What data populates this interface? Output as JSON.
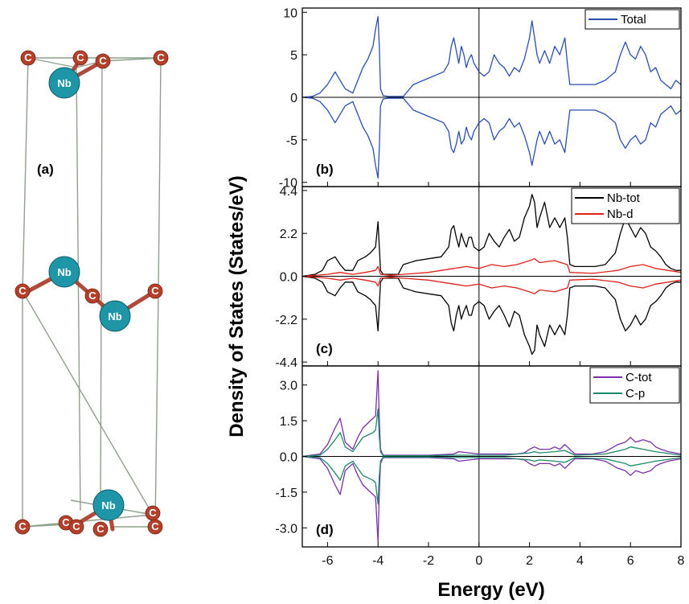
{
  "structure": {
    "panel_label": "(a)",
    "atom_label_nb": "Nb",
    "atom_label_c": "C",
    "colors": {
      "nb": "#1e96a8",
      "c": "#b5402a",
      "bond": "#8fa08c"
    }
  },
  "axes": {
    "ylabel": "Density of States (States/eV)",
    "xlabel": "Energy (eV)",
    "xticks": [
      "-6",
      "-4",
      "-2",
      "0",
      "2",
      "4",
      "6",
      "8"
    ]
  },
  "chart_data": [
    {
      "type": "line",
      "panel_label": "(b)",
      "yticks": [
        "10",
        "5",
        "0",
        "-5",
        "-10"
      ],
      "xlim": [
        -7,
        8
      ],
      "ylim": [
        -10.5,
        10.5
      ],
      "series": [
        {
          "name": "Total",
          "color": "#2a4fb0",
          "x": [
            -7,
            -6.6,
            -6.3,
            -6.0,
            -5.7,
            -5.5,
            -5.3,
            -5.0,
            -4.8,
            -4.6,
            -4.4,
            -4.2,
            -4.1,
            -4.0,
            -3.95,
            -3.9,
            -3.8,
            -3.6,
            -3.4,
            -3.2,
            -3.0,
            -2.6,
            -2.2,
            -1.8,
            -1.4,
            -1.2,
            -1.1,
            -1.0,
            -0.9,
            -0.8,
            -0.7,
            -0.6,
            -0.5,
            -0.4,
            -0.3,
            -0.2,
            -0.1,
            0.0,
            0.2,
            0.4,
            0.6,
            0.8,
            1.0,
            1.2,
            1.4,
            1.6,
            1.8,
            2.0,
            2.1,
            2.2,
            2.3,
            2.4,
            2.6,
            2.8,
            3.0,
            3.2,
            3.4,
            3.5,
            3.6,
            3.8,
            4.2,
            4.6,
            5.0,
            5.4,
            5.6,
            5.8,
            6.0,
            6.2,
            6.4,
            6.6,
            6.8,
            7.0,
            7.2,
            7.4,
            7.6,
            7.8,
            8.0
          ],
          "up": [
            0,
            0.1,
            0.5,
            1.5,
            3.0,
            2.0,
            1.0,
            0.5,
            2.0,
            3.5,
            4.5,
            6.0,
            8.0,
            9.5,
            6.0,
            1.0,
            0.2,
            0.1,
            0.1,
            0.1,
            0.1,
            1.5,
            2.0,
            2.5,
            3.0,
            4.0,
            6.0,
            7.0,
            5.5,
            4.0,
            6.0,
            5.0,
            3.5,
            4.5,
            5.0,
            4.0,
            3.5,
            3.0,
            2.5,
            3.0,
            5.0,
            4.0,
            3.5,
            2.5,
            3.5,
            3.0,
            4.5,
            7.0,
            9.0,
            7.0,
            5.0,
            4.0,
            5.5,
            4.0,
            6.0,
            5.0,
            7.0,
            4.0,
            1.5,
            1.5,
            1.5,
            1.5,
            2.0,
            3.0,
            5.0,
            6.5,
            5.0,
            4.5,
            6.0,
            5.0,
            3.0,
            3.5,
            2.0,
            1.5,
            1.0,
            2.0,
            1.5
          ],
          "down": [
            0,
            -0.1,
            -0.5,
            -1.5,
            -3.0,
            -2.0,
            -1.0,
            -0.5,
            -2.0,
            -3.5,
            -4.5,
            -6.0,
            -8.0,
            -9.5,
            -6.0,
            -1.0,
            -0.2,
            -0.1,
            -0.1,
            -0.1,
            -0.1,
            -1.5,
            -2.0,
            -2.5,
            -3.0,
            -4.0,
            -6.0,
            -6.5,
            -5.5,
            -4.0,
            -5.5,
            -5.0,
            -3.5,
            -4.5,
            -5.0,
            -4.0,
            -3.5,
            -3.0,
            -2.5,
            -3.0,
            -5.0,
            -4.0,
            -3.5,
            -2.5,
            -3.5,
            -3.0,
            -4.5,
            -6.5,
            -8.0,
            -6.5,
            -5.0,
            -4.0,
            -5.5,
            -4.0,
            -5.5,
            -5.0,
            -6.5,
            -4.0,
            -1.5,
            -1.5,
            -1.5,
            -1.5,
            -2.0,
            -3.0,
            -5.0,
            -6.0,
            -5.0,
            -4.5,
            -5.5,
            -5.0,
            -3.0,
            -3.5,
            -2.0,
            -1.5,
            -1.0,
            -2.0,
            -1.5
          ]
        }
      ]
    },
    {
      "type": "line",
      "panel_label": "(c)",
      "yticks": [
        "4.4",
        "2.2",
        "0.0",
        "-2.2",
        "-4.4"
      ],
      "xlim": [
        -7,
        8
      ],
      "ylim": [
        -4.6,
        4.6
      ],
      "series": [
        {
          "name": "Nb-tot",
          "color": "#000000",
          "x": [
            -7,
            -6.5,
            -6.2,
            -6.0,
            -5.7,
            -5.5,
            -5.3,
            -5.0,
            -4.8,
            -4.5,
            -4.3,
            -4.1,
            -4.0,
            -3.95,
            -3.9,
            -3.8,
            -3.6,
            -3.4,
            -3.2,
            -3.0,
            -2.5,
            -2.0,
            -1.5,
            -1.2,
            -1.1,
            -1.0,
            -0.9,
            -0.8,
            -0.7,
            -0.6,
            -0.5,
            -0.4,
            -0.3,
            -0.2,
            0.0,
            0.2,
            0.4,
            0.6,
            0.8,
            1.0,
            1.2,
            1.4,
            1.6,
            1.8,
            2.0,
            2.1,
            2.2,
            2.3,
            2.4,
            2.6,
            2.8,
            3.0,
            3.2,
            3.4,
            3.5,
            3.6,
            3.8,
            4.2,
            4.6,
            5.0,
            5.4,
            5.6,
            5.8,
            6.0,
            6.2,
            6.4,
            6.6,
            6.8,
            7.0,
            7.2,
            7.4,
            7.6,
            7.8,
            8.0
          ],
          "up": [
            0,
            0.1,
            0.3,
            0.8,
            1.0,
            0.6,
            0.3,
            0.3,
            0.8,
            1.0,
            1.2,
            1.5,
            2.8,
            1.5,
            0.3,
            0.1,
            0.1,
            0.1,
            0.1,
            0.6,
            0.8,
            0.9,
            1.0,
            1.5,
            2.4,
            2.6,
            2.0,
            1.5,
            2.2,
            1.8,
            1.5,
            2.0,
            2.0,
            1.5,
            1.3,
            1.5,
            2.2,
            1.8,
            1.5,
            2.0,
            2.4,
            1.8,
            2.0,
            3.0,
            3.6,
            4.2,
            3.8,
            2.5,
            3.0,
            3.8,
            2.5,
            3.0,
            2.5,
            3.0,
            2.0,
            0.6,
            0.5,
            0.5,
            0.5,
            0.6,
            1.2,
            2.2,
            3.0,
            2.5,
            2.0,
            2.5,
            2.2,
            1.5,
            1.3,
            1.0,
            0.6,
            0.4,
            0.3,
            0.3
          ],
          "down": [
            0,
            -0.1,
            -0.3,
            -0.8,
            -1.0,
            -0.6,
            -0.3,
            -0.3,
            -0.8,
            -1.0,
            -1.2,
            -1.5,
            -2.8,
            -1.5,
            -0.3,
            -0.1,
            -0.1,
            -0.1,
            -0.1,
            -0.6,
            -0.8,
            -0.9,
            -1.0,
            -1.5,
            -2.4,
            -2.8,
            -2.0,
            -1.5,
            -2.2,
            -1.8,
            -1.5,
            -2.0,
            -2.0,
            -1.5,
            -1.3,
            -1.5,
            -2.2,
            -1.8,
            -1.5,
            -2.0,
            -2.6,
            -1.8,
            -2.0,
            -3.0,
            -3.6,
            -4.0,
            -3.8,
            -2.5,
            -3.0,
            -3.6,
            -2.5,
            -3.0,
            -2.5,
            -3.0,
            -2.0,
            -0.6,
            -0.5,
            -0.5,
            -0.5,
            -0.6,
            -1.2,
            -2.2,
            -2.8,
            -2.5,
            -2.0,
            -2.5,
            -2.2,
            -1.5,
            -1.3,
            -1.0,
            -0.6,
            -0.4,
            -0.3,
            -0.3
          ]
        },
        {
          "name": "Nb-d",
          "color": "#e0201a",
          "x": [
            -7,
            -6.0,
            -5.5,
            -5.0,
            -4.5,
            -4.1,
            -4.0,
            -3.9,
            -3.5,
            -3.0,
            -2.0,
            -1.0,
            -0.5,
            0.0,
            0.5,
            1.0,
            1.5,
            2.0,
            2.2,
            2.4,
            3.0,
            3.5,
            3.6,
            4.5,
            5.5,
            6.0,
            6.5,
            7.0,
            8.0
          ],
          "up": [
            0,
            0.1,
            0.2,
            0.1,
            0.2,
            0.3,
            0.5,
            0.1,
            0.05,
            0.1,
            0.2,
            0.4,
            0.5,
            0.4,
            0.6,
            0.5,
            0.6,
            0.8,
            0.9,
            0.7,
            0.8,
            0.6,
            0.2,
            0.15,
            0.3,
            0.5,
            0.6,
            0.4,
            0.2
          ],
          "down": [
            0,
            -0.1,
            -0.2,
            -0.1,
            -0.2,
            -0.3,
            -0.5,
            -0.1,
            -0.05,
            -0.1,
            -0.2,
            -0.4,
            -0.5,
            -0.4,
            -0.6,
            -0.5,
            -0.6,
            -0.8,
            -0.9,
            -0.7,
            -0.8,
            -0.6,
            -0.2,
            -0.15,
            -0.3,
            -0.5,
            -0.6,
            -0.4,
            -0.2
          ]
        }
      ]
    },
    {
      "type": "line",
      "panel_label": "(d)",
      "yticks": [
        "3.0",
        "1.5",
        "0.0",
        "-1.5",
        "-3.0"
      ],
      "xlim": [
        -7,
        8
      ],
      "ylim": [
        -3.8,
        3.8
      ],
      "series": [
        {
          "name": "C-tot",
          "color": "#7a2fa8",
          "x": [
            -7,
            -6.3,
            -6.0,
            -5.7,
            -5.5,
            -5.3,
            -5.0,
            -4.8,
            -4.6,
            -4.4,
            -4.2,
            -4.1,
            -4.0,
            -3.95,
            -3.9,
            -3.8,
            -3.5,
            -3.0,
            -2.0,
            -1.0,
            -0.8,
            0.0,
            1.0,
            1.5,
            1.8,
            2.0,
            2.2,
            2.4,
            2.8,
            3.0,
            3.2,
            3.4,
            3.6,
            3.8,
            4.5,
            5.0,
            5.5,
            5.8,
            6.0,
            6.2,
            6.5,
            6.8,
            7.0,
            7.2,
            7.5,
            8.0
          ],
          "up": [
            0,
            0.1,
            0.5,
            1.2,
            1.6,
            0.6,
            0.3,
            0.8,
            1.2,
            1.4,
            1.6,
            1.7,
            3.6,
            1.5,
            0.3,
            0.05,
            0.05,
            0.05,
            0.05,
            0.1,
            0.2,
            0.1,
            0.1,
            0.1,
            0.15,
            0.3,
            0.4,
            0.3,
            0.3,
            0.4,
            0.3,
            0.5,
            0.3,
            0.1,
            0.1,
            0.2,
            0.5,
            0.6,
            0.8,
            0.6,
            0.7,
            0.6,
            0.4,
            0.3,
            0.2,
            0.1
          ],
          "down": [
            0,
            -0.1,
            -0.5,
            -1.2,
            -1.6,
            -0.6,
            -0.3,
            -0.8,
            -1.2,
            -1.4,
            -1.6,
            -1.7,
            -3.6,
            -1.5,
            -0.3,
            -0.05,
            -0.05,
            -0.05,
            -0.05,
            -0.1,
            -0.2,
            -0.1,
            -0.1,
            -0.1,
            -0.15,
            -0.3,
            -0.4,
            -0.3,
            -0.3,
            -0.4,
            -0.3,
            -0.5,
            -0.3,
            -0.1,
            -0.1,
            -0.2,
            -0.5,
            -0.6,
            -0.8,
            -0.6,
            -0.7,
            -0.6,
            -0.4,
            -0.3,
            -0.2,
            -0.1
          ]
        },
        {
          "name": "C-p",
          "color": "#1a8a6a",
          "x": [
            -7,
            -6.3,
            -6.0,
            -5.7,
            -5.5,
            -5.3,
            -5.0,
            -4.8,
            -4.6,
            -4.4,
            -4.2,
            -4.1,
            -4.0,
            -3.95,
            -3.9,
            -3.8,
            -3.5,
            -3.0,
            -2.0,
            -1.0,
            0.0,
            1.0,
            2.0,
            2.2,
            2.4,
            3.0,
            3.4,
            3.8,
            5.0,
            5.8,
            6.0,
            6.5,
            7.0,
            8.0
          ],
          "up": [
            0,
            0.05,
            0.3,
            0.7,
            1.0,
            0.4,
            0.2,
            0.5,
            0.8,
            0.9,
            1.0,
            1.1,
            2.0,
            0.8,
            0.2,
            0.03,
            0.03,
            0.03,
            0.03,
            0.05,
            0.05,
            0.05,
            0.15,
            0.2,
            0.15,
            0.2,
            0.25,
            0.05,
            0.1,
            0.3,
            0.4,
            0.3,
            0.2,
            0.05
          ],
          "down": [
            0,
            -0.05,
            -0.3,
            -0.7,
            -1.0,
            -0.4,
            -0.2,
            -0.5,
            -0.8,
            -0.9,
            -1.0,
            -1.1,
            -2.0,
            -0.8,
            -0.2,
            -0.03,
            -0.03,
            -0.03,
            -0.03,
            -0.05,
            -0.05,
            -0.05,
            -0.15,
            -0.2,
            -0.15,
            -0.2,
            -0.25,
            -0.05,
            -0.1,
            -0.3,
            -0.4,
            -0.3,
            -0.2,
            -0.05
          ]
        }
      ]
    }
  ]
}
